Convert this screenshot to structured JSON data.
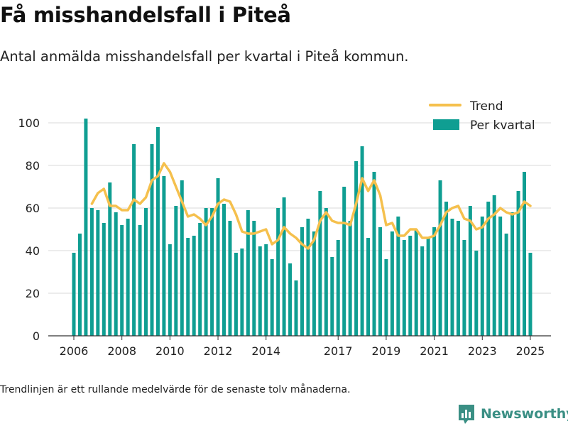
{
  "header": {
    "title": "Få misshandelsfall i Piteå",
    "subtitle": "Antal anmälda misshandelsfall per kvartal i Piteå kommun."
  },
  "footer": {
    "note": "Trendlinjen är ett rullande medelvärde för de senaste tolv månaderna.",
    "brand": "Newsworthy",
    "brand_icon": "bar-chart-logo-icon"
  },
  "colors": {
    "bar": "#0f9e92",
    "trend": "#f5c04d",
    "grid": "#d9d9d9",
    "axis": "#333333",
    "brand": "#3a8f84"
  },
  "chart_data": {
    "type": "bar",
    "title": "Få misshandelsfall i Piteå",
    "subtitle": "Antal anmälda misshandelsfall per kvartal i Piteå kommun.",
    "xlabel": "",
    "ylabel": "",
    "ylim": [
      0,
      110
    ],
    "yticks": [
      0,
      20,
      40,
      60,
      80,
      100
    ],
    "xticks": [
      "2006",
      "2008",
      "2010",
      "2012",
      "2014",
      "2017",
      "2019",
      "2021",
      "2023",
      "2025"
    ],
    "x_start": "2006 Q1",
    "grid": true,
    "legend_position": "top-right",
    "legend": [
      "Trend",
      "Per kvartal"
    ],
    "series": [
      {
        "name": "Per kvartal",
        "type": "bar",
        "values": [
          39,
          48,
          102,
          60,
          59,
          53,
          72,
          58,
          52,
          55,
          90,
          52,
          60,
          90,
          98,
          75,
          43,
          61,
          73,
          46,
          47,
          53,
          60,
          60,
          74,
          62,
          54,
          39,
          41,
          59,
          54,
          42,
          43,
          36,
          60,
          65,
          34,
          26,
          51,
          55,
          49,
          68,
          60,
          37,
          45,
          70,
          54,
          82,
          89,
          46,
          77,
          51,
          36,
          49,
          56,
          45,
          47,
          50,
          42,
          46,
          51,
          73,
          63,
          55,
          54,
          45,
          61,
          40,
          56,
          63,
          66,
          56,
          48,
          58,
          68,
          77,
          39
        ]
      },
      {
        "name": "Trend",
        "type": "line",
        "values": [
          null,
          null,
          null,
          62,
          67,
          69,
          61,
          61,
          59,
          59,
          64,
          62,
          65,
          73,
          75,
          81,
          77,
          70,
          63,
          56,
          57,
          55,
          52,
          56,
          62,
          64,
          63,
          57,
          49,
          48,
          48,
          49,
          50,
          43,
          45,
          51,
          48,
          46,
          43,
          41,
          45,
          54,
          58,
          54,
          53,
          53,
          52,
          62,
          74,
          68,
          73,
          66,
          52,
          53,
          47,
          47,
          50,
          50,
          46,
          46,
          47,
          52,
          58,
          60,
          61,
          55,
          54,
          50,
          51,
          55,
          57,
          60,
          58,
          57,
          58,
          63,
          61
        ]
      }
    ]
  }
}
